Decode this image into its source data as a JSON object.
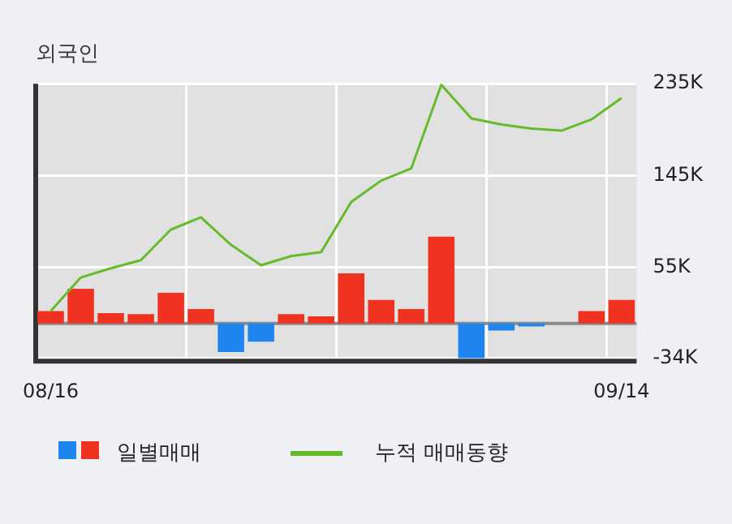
{
  "chart_data": {
    "type": "bar",
    "title": "외국인",
    "categories": [
      "08/16",
      null,
      null,
      null,
      null,
      null,
      null,
      null,
      null,
      null,
      null,
      null,
      null,
      null,
      null,
      null,
      null,
      null,
      null,
      "09/14"
    ],
    "series": [
      {
        "name": "일별매매",
        "colors": [
          "#f03320",
          "#f03320",
          "#f03320",
          "#f03320",
          "#f03320",
          "#f03320",
          "#1f86f0",
          "#1f86f0",
          "#f03320",
          "#f03320",
          "#f03320",
          "#f03320",
          "#f03320",
          "#f03320",
          "#1f86f0",
          "#1f86f0",
          "#1f86f0",
          "#f03320",
          "#f03320",
          "#f03320"
        ],
        "values": [
          12000,
          34000,
          10000,
          9000,
          30000,
          14000,
          -28000,
          -18000,
          9000,
          7000,
          49000,
          23000,
          14000,
          85000,
          -34000,
          -7000,
          -3000,
          0,
          12000,
          23000
        ]
      },
      {
        "name": "누적 매매동향",
        "type": "line",
        "color": "#66bb2a",
        "values": [
          12000,
          45000,
          54000,
          62000,
          92000,
          104000,
          77000,
          57000,
          66000,
          70000,
          119000,
          140000,
          152000,
          234000,
          201000,
          195000,
          191000,
          189000,
          200000,
          221000
        ]
      }
    ],
    "ylim": [
      -37000,
      235000
    ],
    "yticks": [
      {
        "value": -34000,
        "label": "-34K"
      },
      {
        "value": 55000,
        "label": "55K"
      },
      {
        "value": 145000,
        "label": "145K"
      },
      {
        "value": 235000,
        "label": "235K"
      }
    ],
    "grid": true,
    "legend": "bottom",
    "marker": "none"
  }
}
